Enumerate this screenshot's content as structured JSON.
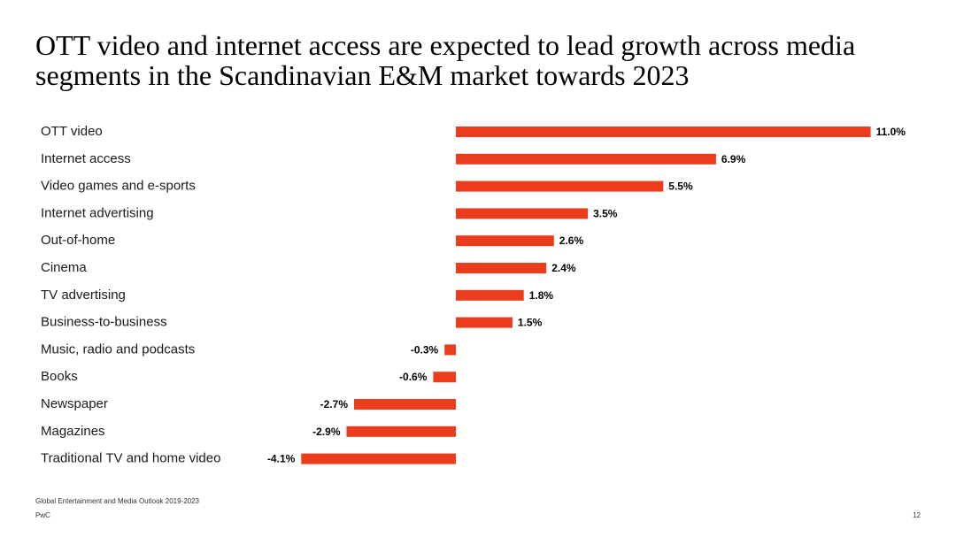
{
  "slide": {
    "title": "OTT video and internet access are expected to lead growth across media segments in the Scandinavian E&M market towards 2023",
    "source": "Global Entertainment and Media Outlook 2019-2023",
    "brand": "PwC",
    "page_number": "12"
  },
  "chart_data": {
    "type": "bar",
    "orientation": "horizontal",
    "title": "",
    "xlabel": "",
    "ylabel": "",
    "categories": [
      "OTT video",
      "Internet access",
      "Video games and e-sports",
      "Internet advertising",
      "Out-of-home",
      "Cinema",
      "TV advertising",
      "Business-to-business",
      "Music, radio and podcasts",
      "Books",
      "Newspaper",
      "Magazines",
      "Traditional TV and home video"
    ],
    "values": [
      11.0,
      6.9,
      5.5,
      3.5,
      2.6,
      2.4,
      1.8,
      1.5,
      -0.3,
      -0.6,
      -2.7,
      -2.9,
      -4.1
    ],
    "value_labels": [
      "11.0%",
      "6.9%",
      "5.5%",
      "3.5%",
      "2.6%",
      "2.4%",
      "1.8%",
      "1.5%",
      "-0.3%",
      "-0.6%",
      "-2.7%",
      "-2.9%",
      "-4.1%"
    ],
    "xlim": [
      -4.1,
      11.0
    ],
    "bar_color": "#eb3c1e",
    "grid": false,
    "legend": "none"
  }
}
